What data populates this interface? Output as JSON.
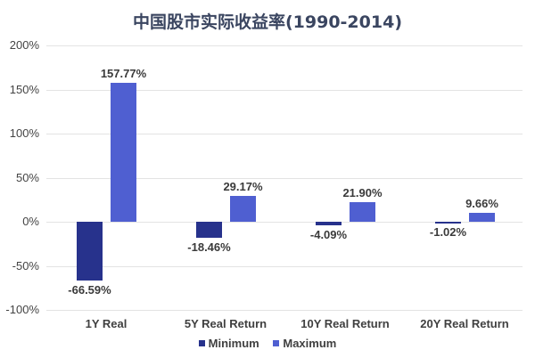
{
  "chart_data": {
    "type": "bar",
    "title": "中国股市实际收益率(1990-2014)",
    "xlabel": "",
    "ylabel": "",
    "categories": [
      "1Y Real",
      "5Y Real Return",
      "10Y Real Return",
      "20Y Real Return"
    ],
    "series": [
      {
        "name": "Minimum",
        "color": "#27328c",
        "values": [
          -66.59,
          -18.46,
          -4.09,
          -1.02
        ],
        "labels": [
          "-66.59%",
          "-18.46%",
          "-4.09%",
          "-1.02%"
        ]
      },
      {
        "name": "Maximum",
        "color": "#4f5fd1",
        "values": [
          157.77,
          29.17,
          21.9,
          9.66
        ],
        "labels": [
          "157.77%",
          "29.17%",
          "21.90%",
          "9.66%"
        ]
      }
    ],
    "ylim": [
      -100,
      200
    ],
    "yticks": [
      "200%",
      "150%",
      "100%",
      "50%",
      "0%",
      "-50%",
      "-100%"
    ],
    "grid": true,
    "legend_position": "bottom"
  }
}
